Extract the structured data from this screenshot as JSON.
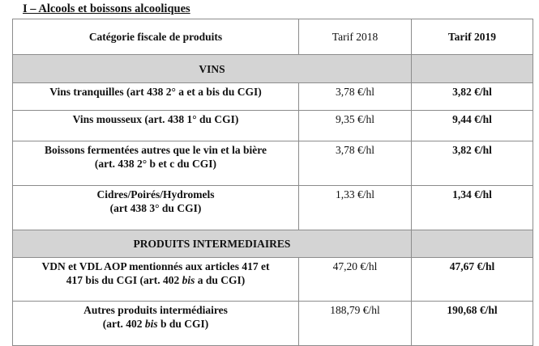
{
  "document": {
    "title": "I – Alcools et boissons alcooliques"
  },
  "table": {
    "headers": {
      "category": "Catégorie fiscale de produits",
      "tarif_2018": "Tarif 2018",
      "tarif_2019": "Tarif 2019"
    },
    "sections": [
      {
        "label": "VINS",
        "rows": [
          {
            "category_lines": [
              "Vins tranquilles (art 438 2° a et a bis du CGI)"
            ],
            "tarif_2018": "3,78 €/hl",
            "tarif_2019": "3,82 €/hl"
          },
          {
            "category_lines": [
              "Vins mousseux (art. 438 1° du CGI)"
            ],
            "tarif_2018": "9,35 €/hl",
            "tarif_2019": "9,44 €/hl"
          },
          {
            "category_lines": [
              "Boissons fermentées autres que le vin et la bière",
              "(art. 438 2° b et c du CGI)"
            ],
            "tarif_2018": "3,78 €/hl",
            "tarif_2019": "3,82 €/hl"
          },
          {
            "category_lines": [
              "Cidres/Poirés/Hydromels",
              "(art 438 3° du CGI)"
            ],
            "tarif_2018": "1,33 €/hl",
            "tarif_2019": "1,34 €/hl"
          }
        ]
      },
      {
        "label": "PRODUITS INTERMEDIAIRES",
        "rows": [
          {
            "category_lines": [
              "VDN et VDL AOP mentionnés aux articles 417 et",
              "417 bis du CGI (art. 402 bis a du CGI)"
            ],
            "tarif_2018": "47,20 €/hl",
            "tarif_2019": "47,67 €/hl"
          },
          {
            "category_lines": [
              "Autres produits intermédiaires",
              "(art. 402 bis b du CGI)"
            ],
            "tarif_2018": "188,79 €/hl",
            "tarif_2019": "190,68 €/hl"
          }
        ]
      }
    ]
  }
}
